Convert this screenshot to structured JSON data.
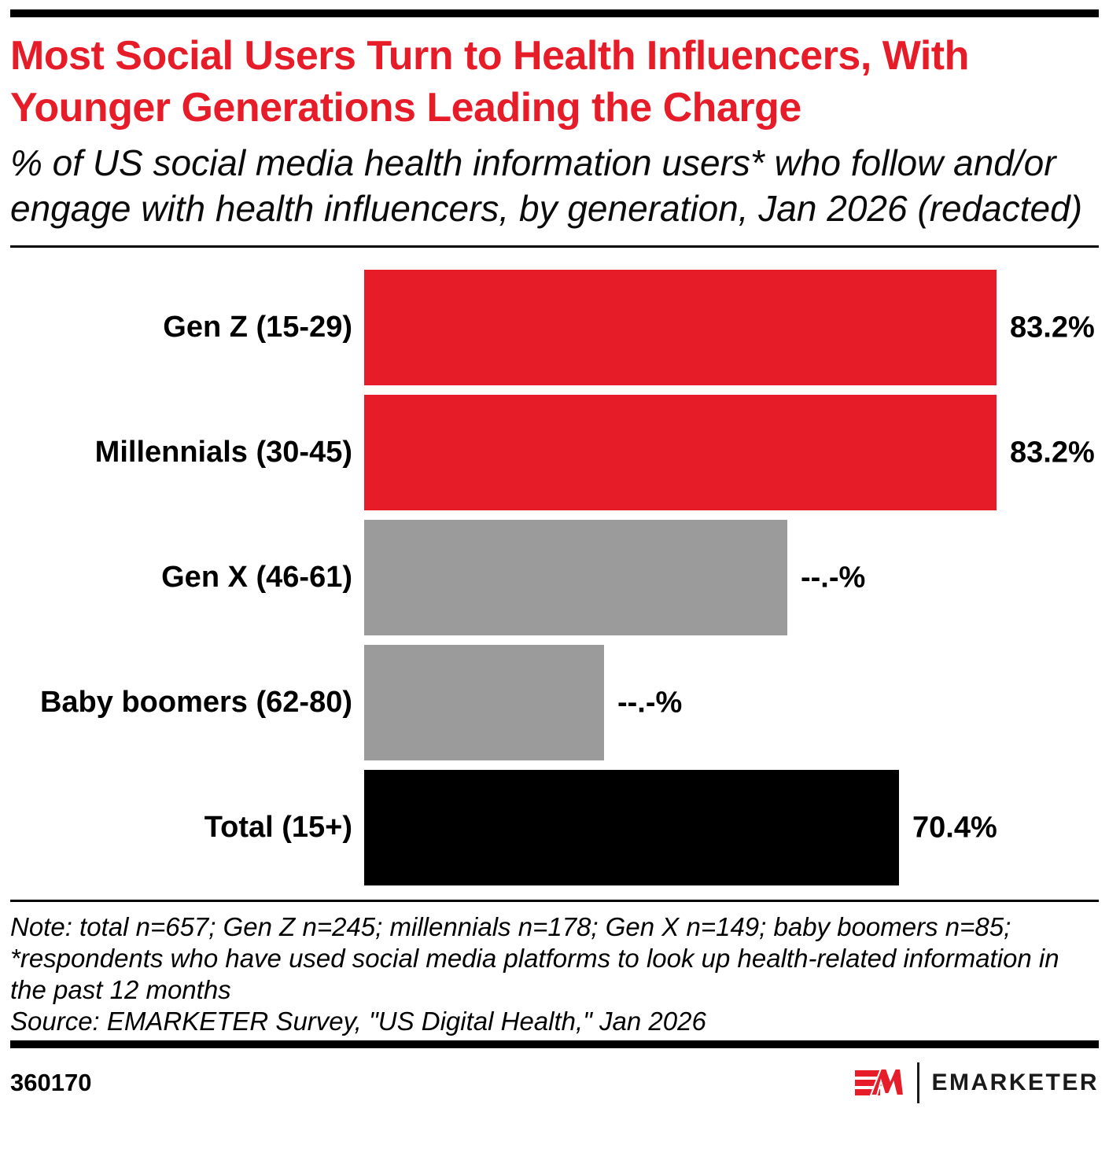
{
  "colors": {
    "accent_red": "#E71C29",
    "bar_gray": "#9B9B9B",
    "bar_black": "#000000",
    "rule_black": "#000000"
  },
  "header": {
    "title": "Most Social Users Turn to Health Influencers, With Younger Generations Leading the Charge",
    "subtitle": "% of US social media health information users* who follow and/or engage with health influencers, by generation, Jan 2026 (redacted)"
  },
  "chart_data": {
    "type": "bar",
    "orientation": "horizontal",
    "title": "Most Social Users Turn to Health Influencers, With Younger Generations Leading the Charge",
    "subtitle": "% of US social media health information users* who follow and/or engage with health influencers, by generation, Jan 2026 (redacted)",
    "categories": [
      "Gen Z (15-29)",
      "Millennials (30-45)",
      "Gen X (46-61)",
      "Baby boomers (62-80)",
      "Total (15+)"
    ],
    "values": [
      83.2,
      83.2,
      null,
      null,
      70.4
    ],
    "value_labels": [
      "83.2%",
      "83.2%",
      "--.-%",
      "--.-%",
      "70.4%"
    ],
    "redacted": [
      false,
      false,
      true,
      true,
      false
    ],
    "estimated_bar_lengths_pct": [
      83.2,
      83.2,
      55.7,
      31.6,
      70.4
    ],
    "bar_colors": [
      "#E71C29",
      "#E71C29",
      "#9B9B9B",
      "#9B9B9B",
      "#000000"
    ],
    "xlim": [
      0,
      96
    ],
    "grid": false,
    "legend": "none"
  },
  "footer": {
    "note": "Note: total n=657; Gen Z n=245; millennials n=178; Gen X n=149; baby boomers n=85; *respondents who have used social media platforms to look up health-related information in the past 12 months",
    "source": "Source: EMARKETER Survey, \"US Digital Health,\" Jan 2026",
    "chart_id": "360170",
    "logo_mark": "EM",
    "logo_text": "EMARKETER"
  }
}
